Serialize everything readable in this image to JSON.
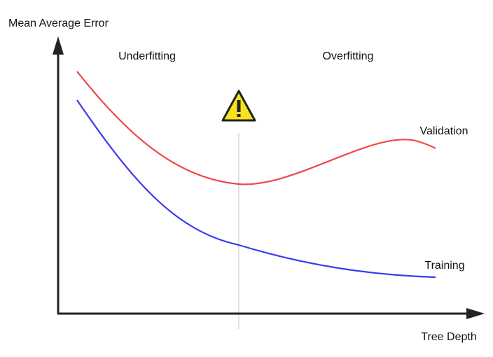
{
  "axes": {
    "y_label": "Mean Average Error",
    "x_label": "Tree Depth"
  },
  "regions": {
    "left": "Underfitting",
    "right": "Overfitting"
  },
  "curves": {
    "validation": "Validation",
    "training": "Training"
  }
}
